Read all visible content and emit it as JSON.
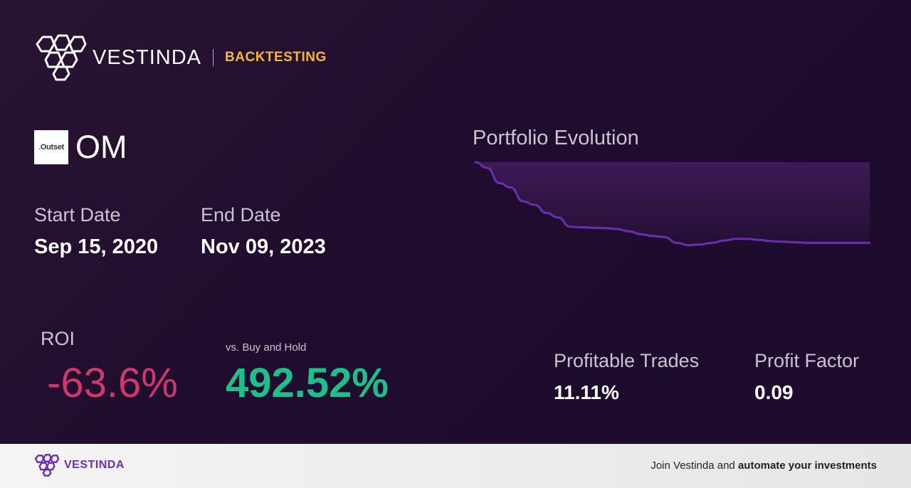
{
  "header": {
    "brand": "VESTINDA",
    "tagline": "BACKTESTING"
  },
  "ticker": {
    "logo_text_prefix": ".",
    "logo_text": "Outset",
    "symbol": "OM"
  },
  "dates": {
    "start_label": "Start Date",
    "start_value": "Sep 15, 2020",
    "end_label": "End Date",
    "end_value": "Nov 09, 2023"
  },
  "roi": {
    "label": "ROI",
    "value": "-63.6%"
  },
  "buy_hold": {
    "label": "vs. Buy and Hold",
    "value": "492.52%"
  },
  "stats": {
    "trades_label": "Profitable Trades",
    "trades_value": "11.11%",
    "factor_label": "Profit Factor",
    "factor_value": "0.09"
  },
  "chart": {
    "title": "Portfolio Evolution",
    "line_color": "#6a2fb0"
  },
  "chart_data": {
    "type": "area",
    "x": [
      0,
      3,
      6,
      9,
      12,
      15,
      18,
      21,
      24,
      27,
      30,
      33,
      36,
      39,
      42,
      45,
      48,
      51,
      54,
      57,
      60,
      63,
      66,
      69,
      72,
      75,
      78,
      81,
      84,
      87,
      90,
      93,
      96,
      99,
      100
    ],
    "y": [
      100,
      95,
      82,
      78,
      66,
      63,
      56,
      52,
      44,
      43.5,
      43,
      42.8,
      42,
      40,
      37.5,
      36,
      35,
      30,
      28,
      28.5,
      30,
      32,
      33.5,
      33.5,
      32.5,
      31.5,
      31,
      30.5,
      30,
      30,
      30,
      30,
      30,
      30,
      30
    ]
  },
  "footer": {
    "brand": "VESTINDA",
    "cta_prefix": "Join Vestinda and ",
    "cta_bold": "automate your investments"
  },
  "colors": {
    "accent": "#f5b731",
    "negative": "#d1376a",
    "positive": "#1fbf8a",
    "brand": "#6a2fb0"
  }
}
